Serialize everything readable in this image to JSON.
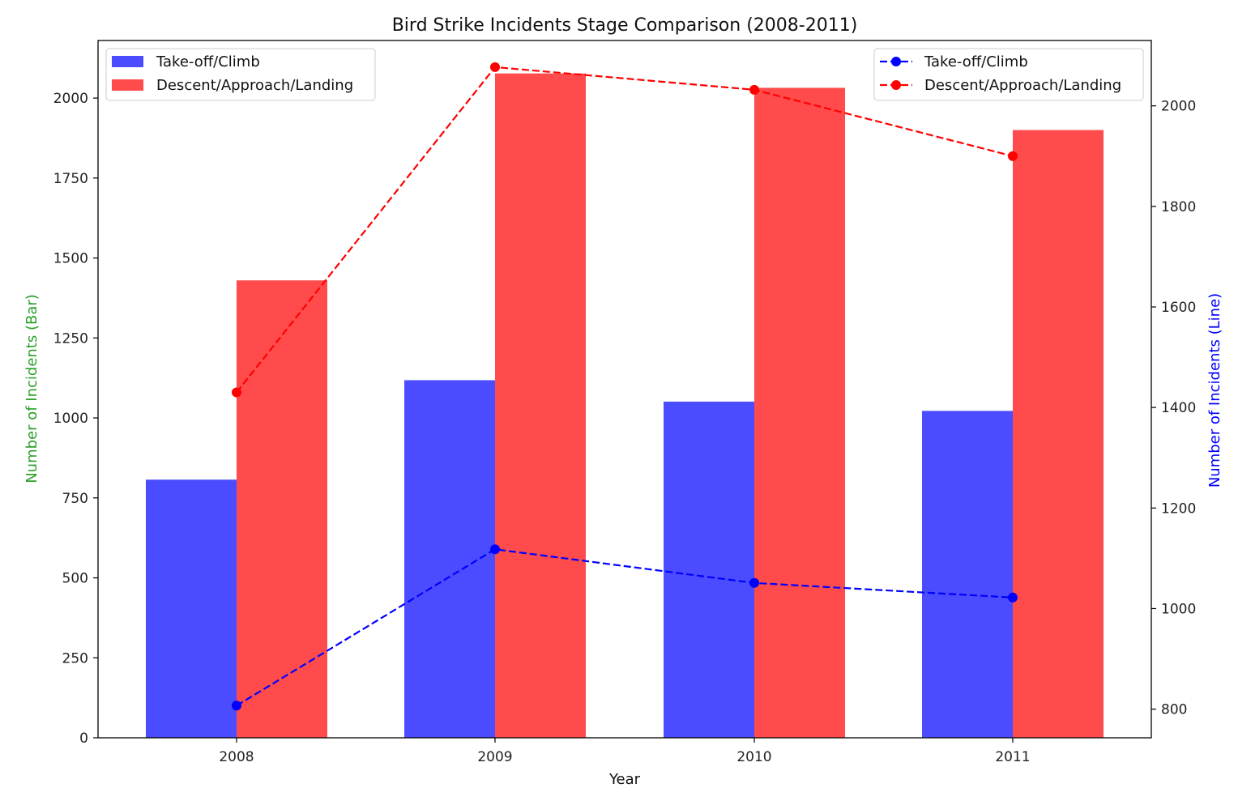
{
  "chart_data": {
    "type": "bar",
    "title": "Bird Strike Incidents Stage Comparison (2008-2011)",
    "xlabel": "Year",
    "ylabel_left": "Number of Incidents (Bar)",
    "ylabel_right": "Number of Incidents (Line)",
    "categories": [
      "2008",
      "2009",
      "2010",
      "2011"
    ],
    "bar_series": [
      {
        "name": "Take-off/Climb",
        "color": "#4b4bff",
        "values": [
          807,
          1118,
          1051,
          1022
        ]
      },
      {
        "name": "Descent/Approach/Landing",
        "color": "#ff4b4b",
        "values": [
          1430,
          2077,
          2032,
          1900
        ]
      }
    ],
    "line_series": [
      {
        "name": "Take-off/Climb",
        "color": "#0000ff",
        "style": "dashed",
        "marker": "circle",
        "values": [
          807,
          1118,
          1051,
          1022
        ]
      },
      {
        "name": "Descent/Approach/Landing",
        "color": "#ff0000",
        "style": "dashed",
        "marker": "circle",
        "values": [
          1430,
          2077,
          2032,
          1900
        ]
      }
    ],
    "y_left": {
      "min": 0,
      "max": 2180,
      "ticks": [
        0,
        250,
        500,
        750,
        1000,
        1250,
        1500,
        1750,
        2000
      ]
    },
    "y_right": {
      "min": 743,
      "max": 2130,
      "ticks": [
        800,
        1000,
        1200,
        1400,
        1600,
        1800,
        2000
      ]
    },
    "ylabel_left_color": "#2ca02c",
    "ylabel_right_color": "#0000ff",
    "legend_bars_position": "upper-left",
    "legend_lines_position": "upper-right",
    "grid": false
  }
}
